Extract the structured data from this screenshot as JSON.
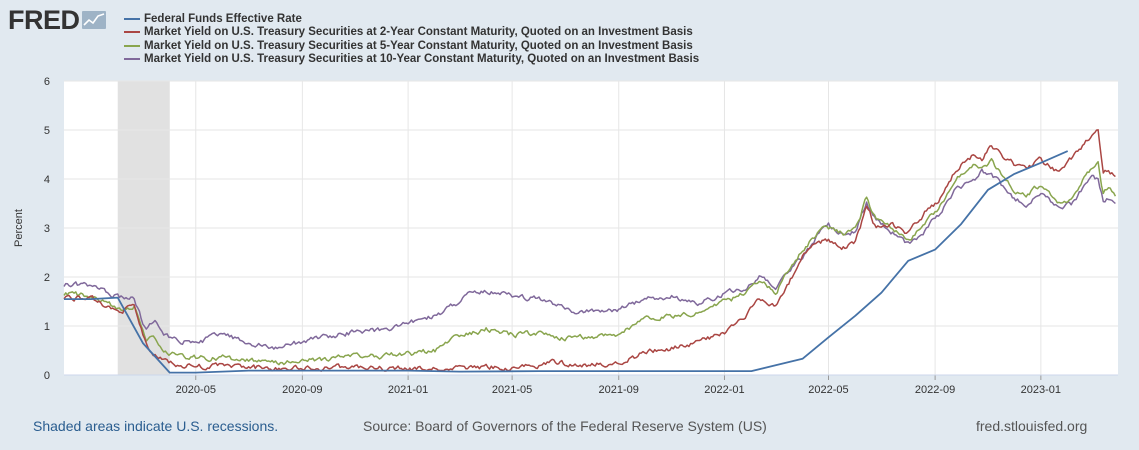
{
  "logo": {
    "text": "FRED"
  },
  "chart_data": {
    "type": "line",
    "ylabel": "Percent",
    "ylim": [
      0,
      6
    ],
    "yticks": [
      "0",
      "1",
      "2",
      "3",
      "4",
      "5",
      "6"
    ],
    "xlim": [
      "2019-12-01",
      "2023-03-31"
    ],
    "xticks": [
      {
        "date": "2020-05-01",
        "label": "2020-05"
      },
      {
        "date": "2020-09-01",
        "label": "2020-09"
      },
      {
        "date": "2021-01-01",
        "label": "2021-01"
      },
      {
        "date": "2021-05-01",
        "label": "2021-05"
      },
      {
        "date": "2021-09-01",
        "label": "2021-09"
      },
      {
        "date": "2022-01-01",
        "label": "2022-01"
      },
      {
        "date": "2022-05-01",
        "label": "2022-05"
      },
      {
        "date": "2022-09-01",
        "label": "2022-09"
      },
      {
        "date": "2023-01-01",
        "label": "2023-01"
      }
    ],
    "recession": {
      "start": "2020-02-01",
      "end": "2020-04-01"
    },
    "grid": true,
    "legend_position": "top-left",
    "series": [
      {
        "name": "Federal Funds Effective Rate",
        "color": "#4572a7",
        "points": [
          [
            "2019-12-01",
            1.55
          ],
          [
            "2020-01-01",
            1.55
          ],
          [
            "2020-02-01",
            1.58
          ],
          [
            "2020-03-01",
            0.65
          ],
          [
            "2020-04-01",
            0.05
          ],
          [
            "2020-05-01",
            0.05
          ],
          [
            "2020-07-01",
            0.09
          ],
          [
            "2020-09-01",
            0.09
          ],
          [
            "2021-01-01",
            0.09
          ],
          [
            "2021-03-01",
            0.07
          ],
          [
            "2021-06-01",
            0.08
          ],
          [
            "2021-09-01",
            0.08
          ],
          [
            "2022-01-01",
            0.08
          ],
          [
            "2022-02-01",
            0.08
          ],
          [
            "2022-03-01",
            0.2
          ],
          [
            "2022-04-01",
            0.33
          ],
          [
            "2022-05-01",
            0.77
          ],
          [
            "2022-06-01",
            1.21
          ],
          [
            "2022-07-01",
            1.68
          ],
          [
            "2022-08-01",
            2.33
          ],
          [
            "2022-09-01",
            2.56
          ],
          [
            "2022-10-01",
            3.08
          ],
          [
            "2022-11-01",
            3.78
          ],
          [
            "2022-12-01",
            4.1
          ],
          [
            "2023-01-01",
            4.33
          ],
          [
            "2023-02-01",
            4.57
          ]
        ]
      },
      {
        "name": "Market Yield on U.S. Treasury Securities at 2-Year Constant Maturity, Quoted on an Investment Basis",
        "color": "#aa4643",
        "points": [
          [
            "2019-12-01",
            1.6
          ],
          [
            "2020-01-01",
            1.55
          ],
          [
            "2020-02-01",
            1.3
          ],
          [
            "2020-02-20",
            1.4
          ],
          [
            "2020-03-05",
            0.6
          ],
          [
            "2020-03-15",
            0.4
          ],
          [
            "2020-03-25",
            0.3
          ],
          [
            "2020-04-10",
            0.22
          ],
          [
            "2020-05-01",
            0.17
          ],
          [
            "2020-06-01",
            0.19
          ],
          [
            "2020-07-01",
            0.15
          ],
          [
            "2020-08-01",
            0.14
          ],
          [
            "2020-09-01",
            0.14
          ],
          [
            "2020-10-01",
            0.15
          ],
          [
            "2020-11-01",
            0.17
          ],
          [
            "2020-12-01",
            0.13
          ],
          [
            "2021-01-01",
            0.12
          ],
          [
            "2021-02-01",
            0.12
          ],
          [
            "2021-03-01",
            0.14
          ],
          [
            "2021-04-01",
            0.16
          ],
          [
            "2021-05-01",
            0.15
          ],
          [
            "2021-06-01",
            0.2
          ],
          [
            "2021-06-20",
            0.26
          ],
          [
            "2021-07-01",
            0.24
          ],
          [
            "2021-08-01",
            0.21
          ],
          [
            "2021-09-01",
            0.25
          ],
          [
            "2021-10-01",
            0.45
          ],
          [
            "2021-11-01",
            0.55
          ],
          [
            "2021-12-01",
            0.68
          ],
          [
            "2022-01-01",
            0.85
          ],
          [
            "2022-01-25",
            1.18
          ],
          [
            "2022-02-10",
            1.55
          ],
          [
            "2022-03-01",
            1.45
          ],
          [
            "2022-03-20",
            2.0
          ],
          [
            "2022-04-01",
            2.45
          ],
          [
            "2022-04-20",
            2.7
          ],
          [
            "2022-05-01",
            2.75
          ],
          [
            "2022-05-20",
            2.6
          ],
          [
            "2022-06-01",
            2.7
          ],
          [
            "2022-06-14",
            3.45
          ],
          [
            "2022-06-25",
            3.0
          ],
          [
            "2022-07-10",
            3.1
          ],
          [
            "2022-08-01",
            2.9
          ],
          [
            "2022-08-20",
            3.3
          ],
          [
            "2022-09-05",
            3.5
          ],
          [
            "2022-09-25",
            4.2
          ],
          [
            "2022-10-15",
            4.5
          ],
          [
            "2022-10-25",
            4.4
          ],
          [
            "2022-11-05",
            4.7
          ],
          [
            "2022-11-20",
            4.45
          ],
          [
            "2022-12-01",
            4.3
          ],
          [
            "2022-12-15",
            4.25
          ],
          [
            "2023-01-01",
            4.4
          ],
          [
            "2023-01-20",
            4.15
          ],
          [
            "2023-02-05",
            4.4
          ],
          [
            "2023-02-20",
            4.7
          ],
          [
            "2023-03-01",
            4.9
          ],
          [
            "2023-03-08",
            5.05
          ],
          [
            "2023-03-14",
            4.1
          ],
          [
            "2023-03-20",
            4.2
          ],
          [
            "2023-03-28",
            4.05
          ]
        ]
      },
      {
        "name": "Market Yield on U.S. Treasury Securities at 5-Year Constant Maturity, Quoted on an Investment Basis",
        "color": "#89a54e",
        "points": [
          [
            "2019-12-01",
            1.67
          ],
          [
            "2020-01-01",
            1.6
          ],
          [
            "2020-02-01",
            1.35
          ],
          [
            "2020-02-20",
            1.4
          ],
          [
            "2020-03-05",
            0.7
          ],
          [
            "2020-03-15",
            0.75
          ],
          [
            "2020-03-25",
            0.45
          ],
          [
            "2020-04-10",
            0.42
          ],
          [
            "2020-05-01",
            0.35
          ],
          [
            "2020-06-01",
            0.35
          ],
          [
            "2020-07-01",
            0.28
          ],
          [
            "2020-08-01",
            0.25
          ],
          [
            "2020-09-01",
            0.27
          ],
          [
            "2020-10-01",
            0.33
          ],
          [
            "2020-11-01",
            0.4
          ],
          [
            "2020-12-01",
            0.38
          ],
          [
            "2021-01-01",
            0.43
          ],
          [
            "2021-02-01",
            0.5
          ],
          [
            "2021-02-25",
            0.8
          ],
          [
            "2021-03-15",
            0.85
          ],
          [
            "2021-04-01",
            0.93
          ],
          [
            "2021-05-01",
            0.82
          ],
          [
            "2021-06-01",
            0.85
          ],
          [
            "2021-07-01",
            0.75
          ],
          [
            "2021-08-01",
            0.78
          ],
          [
            "2021-09-01",
            0.85
          ],
          [
            "2021-10-01",
            1.15
          ],
          [
            "2021-11-01",
            1.2
          ],
          [
            "2021-12-01",
            1.25
          ],
          [
            "2022-01-01",
            1.5
          ],
          [
            "2022-01-25",
            1.65
          ],
          [
            "2022-02-10",
            1.95
          ],
          [
            "2022-03-01",
            1.7
          ],
          [
            "2022-03-20",
            2.2
          ],
          [
            "2022-04-01",
            2.55
          ],
          [
            "2022-04-20",
            2.95
          ],
          [
            "2022-05-01",
            3.0
          ],
          [
            "2022-05-20",
            2.85
          ],
          [
            "2022-06-01",
            2.95
          ],
          [
            "2022-06-14",
            3.6
          ],
          [
            "2022-06-25",
            3.15
          ],
          [
            "2022-07-10",
            3.05
          ],
          [
            "2022-08-01",
            2.75
          ],
          [
            "2022-08-20",
            3.1
          ],
          [
            "2022-09-05",
            3.35
          ],
          [
            "2022-09-25",
            4.0
          ],
          [
            "2022-10-15",
            4.3
          ],
          [
            "2022-10-25",
            4.2
          ],
          [
            "2022-11-05",
            4.4
          ],
          [
            "2022-11-20",
            4.0
          ],
          [
            "2022-12-01",
            3.8
          ],
          [
            "2022-12-15",
            3.65
          ],
          [
            "2023-01-01",
            3.9
          ],
          [
            "2023-01-20",
            3.55
          ],
          [
            "2023-02-05",
            3.6
          ],
          [
            "2023-02-20",
            4.0
          ],
          [
            "2023-03-01",
            4.25
          ],
          [
            "2023-03-08",
            4.35
          ],
          [
            "2023-03-14",
            3.7
          ],
          [
            "2023-03-20",
            3.8
          ],
          [
            "2023-03-28",
            3.65
          ]
        ]
      },
      {
        "name": "Market Yield on U.S. Treasury Securities at 10-Year Constant Maturity, Quoted on an Investment Basis",
        "color": "#80699b",
        "points": [
          [
            "2019-12-01",
            1.85
          ],
          [
            "2020-01-01",
            1.82
          ],
          [
            "2020-02-01",
            1.6
          ],
          [
            "2020-02-20",
            1.55
          ],
          [
            "2020-03-05",
            0.9
          ],
          [
            "2020-03-15",
            1.15
          ],
          [
            "2020-03-25",
            0.8
          ],
          [
            "2020-04-10",
            0.72
          ],
          [
            "2020-05-01",
            0.65
          ],
          [
            "2020-06-01",
            0.85
          ],
          [
            "2020-07-01",
            0.63
          ],
          [
            "2020-08-01",
            0.55
          ],
          [
            "2020-09-01",
            0.68
          ],
          [
            "2020-10-01",
            0.78
          ],
          [
            "2020-11-01",
            0.88
          ],
          [
            "2020-12-01",
            0.92
          ],
          [
            "2021-01-01",
            1.05
          ],
          [
            "2021-02-01",
            1.2
          ],
          [
            "2021-02-25",
            1.45
          ],
          [
            "2021-03-15",
            1.65
          ],
          [
            "2021-04-01",
            1.72
          ],
          [
            "2021-05-01",
            1.6
          ],
          [
            "2021-06-01",
            1.55
          ],
          [
            "2021-07-01",
            1.35
          ],
          [
            "2021-08-01",
            1.28
          ],
          [
            "2021-09-01",
            1.35
          ],
          [
            "2021-10-01",
            1.55
          ],
          [
            "2021-11-01",
            1.6
          ],
          [
            "2021-12-01",
            1.45
          ],
          [
            "2022-01-01",
            1.65
          ],
          [
            "2022-01-25",
            1.8
          ],
          [
            "2022-02-10",
            2.0
          ],
          [
            "2022-03-01",
            1.75
          ],
          [
            "2022-03-20",
            2.2
          ],
          [
            "2022-04-01",
            2.4
          ],
          [
            "2022-04-20",
            2.9
          ],
          [
            "2022-05-01",
            3.05
          ],
          [
            "2022-05-20",
            2.85
          ],
          [
            "2022-06-01",
            2.95
          ],
          [
            "2022-06-14",
            3.5
          ],
          [
            "2022-06-25",
            3.15
          ],
          [
            "2022-07-10",
            2.95
          ],
          [
            "2022-08-01",
            2.65
          ],
          [
            "2022-08-20",
            2.95
          ],
          [
            "2022-09-05",
            3.25
          ],
          [
            "2022-09-25",
            3.8
          ],
          [
            "2022-10-15",
            4.0
          ],
          [
            "2022-10-25",
            4.15
          ],
          [
            "2022-11-05",
            4.1
          ],
          [
            "2022-11-20",
            3.8
          ],
          [
            "2022-12-01",
            3.6
          ],
          [
            "2022-12-15",
            3.5
          ],
          [
            "2023-01-01",
            3.75
          ],
          [
            "2023-01-20",
            3.45
          ],
          [
            "2023-02-05",
            3.5
          ],
          [
            "2023-02-20",
            3.85
          ],
          [
            "2023-03-01",
            4.0
          ],
          [
            "2023-03-08",
            3.95
          ],
          [
            "2023-03-14",
            3.55
          ],
          [
            "2023-03-20",
            3.6
          ],
          [
            "2023-03-28",
            3.5
          ]
        ]
      }
    ]
  },
  "footer": {
    "recession_note": "Shaded areas indicate U.S. recessions.",
    "source": "Source: Board of Governors of the Federal Reserve System (US)",
    "site": "fred.stlouisfed.org"
  }
}
